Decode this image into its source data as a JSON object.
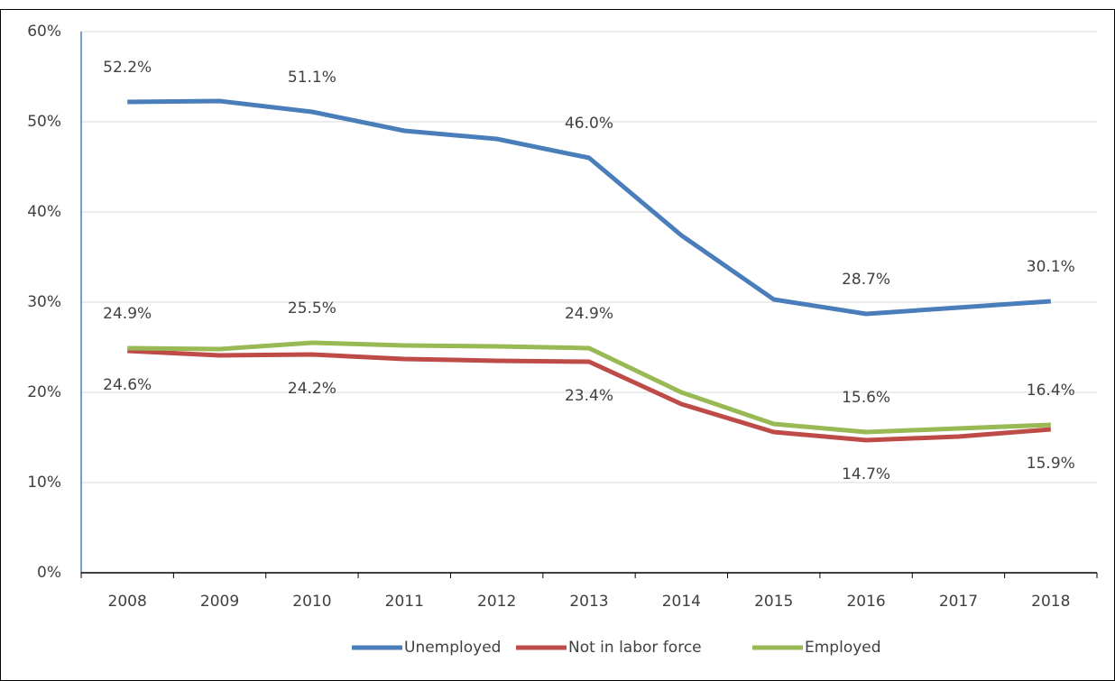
{
  "chart_data": {
    "type": "line",
    "categories": [
      "2008",
      "2009",
      "2010",
      "2011",
      "2012",
      "2013",
      "2014",
      "2015",
      "2016",
      "2017",
      "2018"
    ],
    "series": [
      {
        "name": "Unemployed",
        "color": "#4a7ebb",
        "label_side": "above",
        "values": [
          52.2,
          52.3,
          51.1,
          49.0,
          48.1,
          46.0,
          37.4,
          30.3,
          28.7,
          29.4,
          30.1
        ],
        "value_labels": [
          "52.2%",
          null,
          "51.1%",
          null,
          null,
          "46.0%",
          null,
          null,
          "28.7%",
          null,
          "30.1%"
        ]
      },
      {
        "name": "Not in labor force",
        "color": "#be4b48",
        "label_side": "below",
        "values": [
          24.6,
          24.1,
          24.2,
          23.7,
          23.5,
          23.4,
          18.7,
          15.6,
          14.7,
          15.1,
          15.9
        ],
        "value_labels": [
          "24.6%",
          null,
          "24.2%",
          null,
          null,
          "23.4%",
          null,
          null,
          "14.7%",
          null,
          "15.9%"
        ]
      },
      {
        "name": "Employed",
        "color": "#98b954",
        "label_side": "above",
        "values": [
          24.9,
          24.8,
          25.5,
          25.2,
          25.1,
          24.9,
          20.0,
          16.5,
          15.6,
          16.0,
          16.4
        ],
        "value_labels": [
          "24.9%",
          null,
          "25.5%",
          null,
          null,
          "24.9%",
          null,
          null,
          "15.6%",
          null,
          "16.4%"
        ]
      }
    ],
    "ylim": [
      0,
      60
    ],
    "yticks": [
      {
        "value": 0,
        "label": "0%"
      },
      {
        "value": 10,
        "label": "10%"
      },
      {
        "value": 20,
        "label": "20%"
      },
      {
        "value": 30,
        "label": "30%"
      },
      {
        "value": 40,
        "label": "40%"
      },
      {
        "value": 50,
        "label": "50%"
      },
      {
        "value": 60,
        "label": "60%"
      }
    ],
    "grid": true,
    "legend": "bottom"
  }
}
